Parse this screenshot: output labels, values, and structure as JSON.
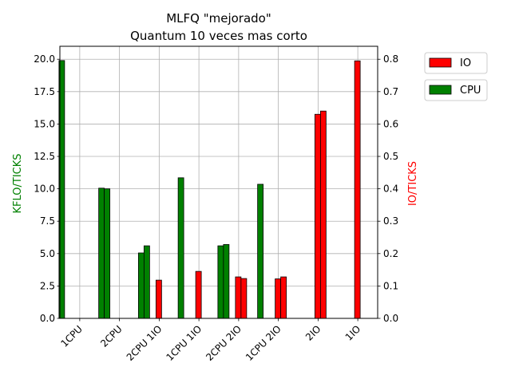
{
  "chart_data": {
    "type": "bar",
    "title": "MLFQ \"mejorado\"",
    "subtitle": "Quantum 10 veces mas corto",
    "categories": [
      "1CPU",
      "2CPU",
      "2CPU 1IO",
      "1CPU 1IO",
      "2CPU 2IO",
      "1CPU 2IO",
      "2IO",
      "1IO"
    ],
    "left_axis": {
      "label": "KFLO/TICKS",
      "ylim": [
        0,
        21
      ],
      "ticks": [
        "0.0",
        "2.5",
        "5.0",
        "7.5",
        "10.0",
        "12.5",
        "15.0",
        "17.5",
        "20.0"
      ],
      "color": "#008000"
    },
    "right_axis": {
      "label": "IO/TICKS",
      "ylim": [
        0,
        0.84
      ],
      "ticks": [
        "0.0",
        "0.1",
        "0.2",
        "0.3",
        "0.4",
        "0.5",
        "0.6",
        "0.7",
        "0.8"
      ],
      "color": "#ff0000"
    },
    "series": [
      {
        "name": "CPU",
        "axis": "left",
        "color": "#008000",
        "groups": [
          [
            19.9,
            0
          ],
          [
            10.05,
            10.0
          ],
          [
            5.05,
            5.6
          ],
          [
            10.85
          ],
          [
            5.6,
            5.7
          ],
          [
            10.35
          ],
          [],
          []
        ]
      },
      {
        "name": "IO",
        "axis": "right",
        "color": "#ff0000",
        "groups": [
          [],
          [],
          [
            0.118
          ],
          [
            0.145
          ],
          [
            0.128,
            0.123
          ],
          [
            0.122,
            0.128
          ],
          [
            0.63,
            0.64
          ],
          [
            0.795
          ]
        ]
      }
    ],
    "grid": true,
    "legend_position": "outside-right"
  }
}
